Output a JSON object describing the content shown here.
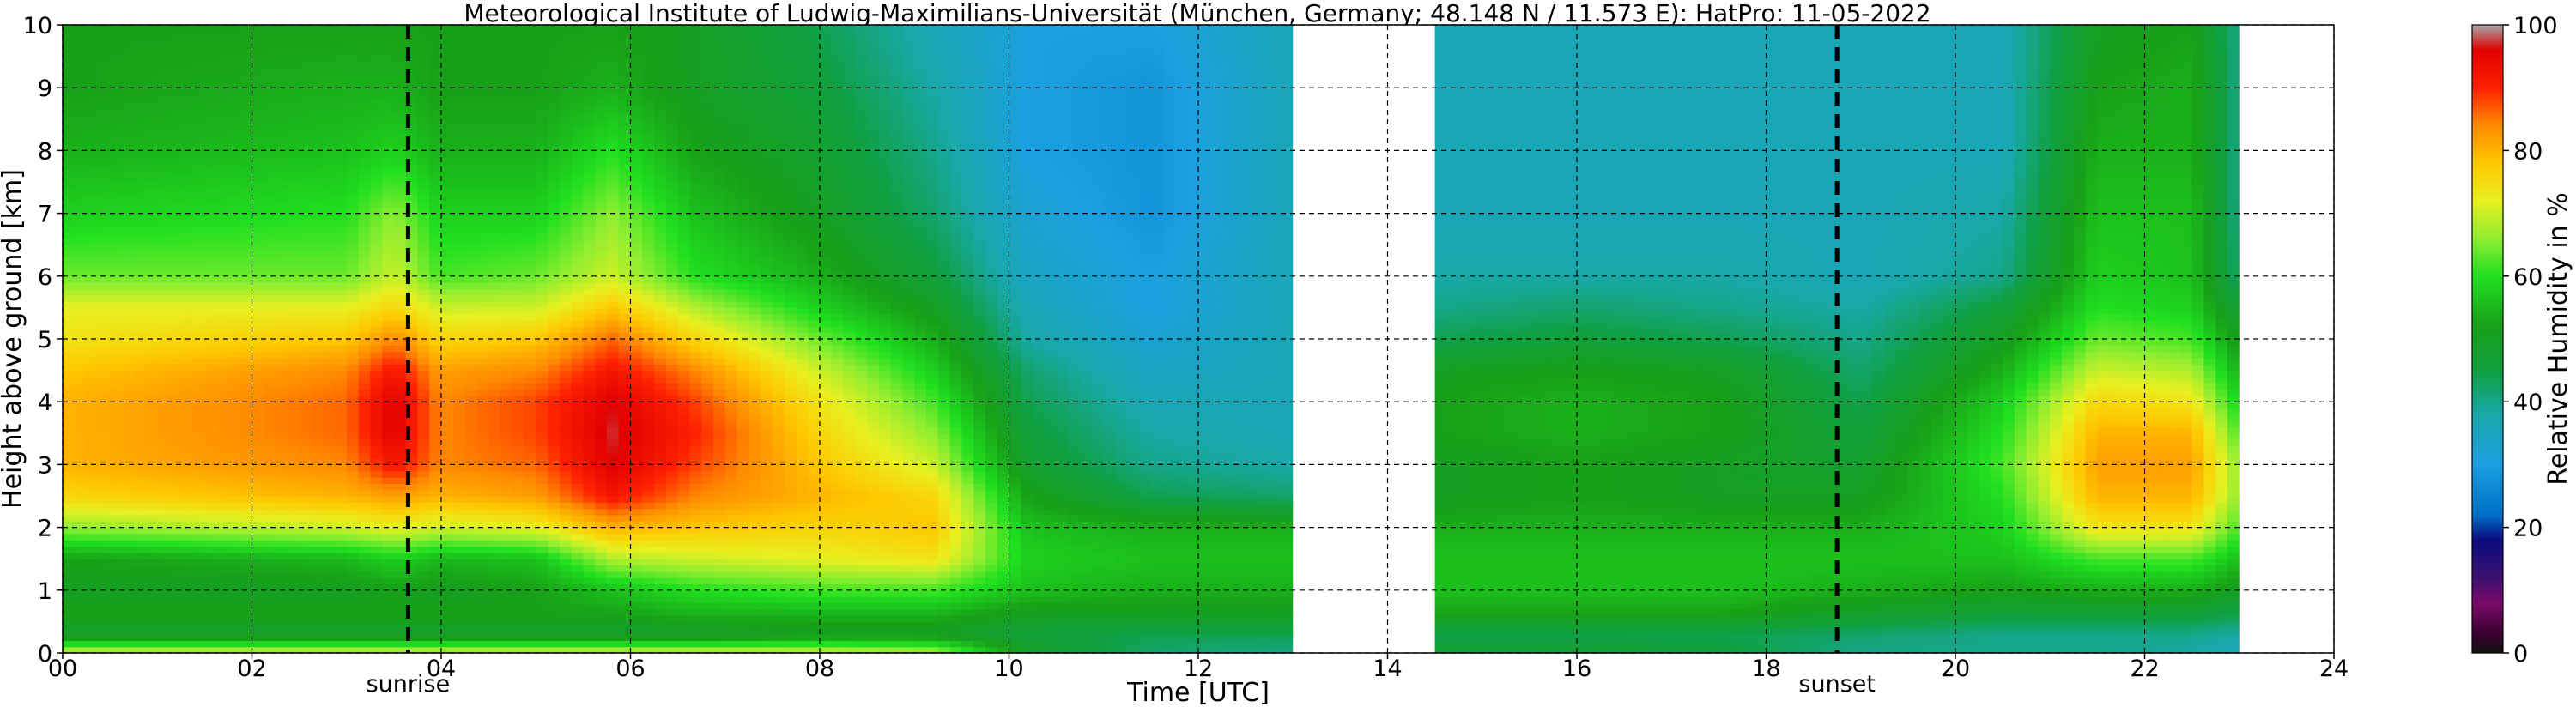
{
  "chart_data": {
    "type": "heatmap",
    "title": "Meteorological Institute of Ludwig-Maximilians-Universität (München, Germany; 48.148 N / 11.573 E):    HatPro: 11-05-2022",
    "xlabel": "Time [UTC]",
    "ylabel": "Height above ground [km]",
    "xlim": [
      0,
      24
    ],
    "ylim": [
      0,
      10
    ],
    "x_ticks": [
      "00",
      "02",
      "04",
      "06",
      "08",
      "10",
      "12",
      "14",
      "16",
      "18",
      "20",
      "22",
      "24"
    ],
    "y_ticks": [
      "0",
      "1",
      "2",
      "3",
      "4",
      "5",
      "6",
      "7",
      "8",
      "9",
      "10"
    ],
    "grid": true,
    "data_gaps_hours": [
      [
        13.0,
        14.45
      ],
      [
        23.0,
        24.0
      ]
    ],
    "events": [
      {
        "label": "sunrise",
        "time_h": 3.65
      },
      {
        "label": "sunset",
        "time_h": 18.75
      }
    ],
    "colorbar": {
      "label": "Relative Humidity in %",
      "range": [
        0,
        100
      ],
      "ticks": [
        "0",
        "20",
        "40",
        "60",
        "80",
        "100"
      ],
      "stops": [
        {
          "v": 0,
          "c": "#111111"
        },
        {
          "v": 3,
          "c": "#3a0030"
        },
        {
          "v": 8,
          "c": "#7a0a6a"
        },
        {
          "v": 12,
          "c": "#3a1070"
        },
        {
          "v": 18,
          "c": "#0a0a80"
        },
        {
          "v": 22,
          "c": "#0070c8"
        },
        {
          "v": 30,
          "c": "#1aa0e0"
        },
        {
          "v": 38,
          "c": "#18a8a8"
        },
        {
          "v": 45,
          "c": "#10a040"
        },
        {
          "v": 52,
          "c": "#18a018"
        },
        {
          "v": 60,
          "c": "#20e020"
        },
        {
          "v": 66,
          "c": "#90ee30"
        },
        {
          "v": 72,
          "c": "#e8f020"
        },
        {
          "v": 78,
          "c": "#ffc800"
        },
        {
          "v": 84,
          "c": "#ff8a00"
        },
        {
          "v": 90,
          "c": "#ff2000"
        },
        {
          "v": 96,
          "c": "#e00000"
        },
        {
          "v": 100,
          "c": "#a8a8a8"
        }
      ]
    },
    "humidity_profiles": [
      {
        "t": 0.0,
        "h": [
          0,
          0.3,
          0.6,
          1,
          1.5,
          2,
          2.5,
          3,
          3.5,
          4,
          4.5,
          5,
          5.5,
          6,
          7,
          8,
          9,
          10
        ],
        "rh": [
          70,
          48,
          52,
          50,
          52,
          66,
          76,
          80,
          80,
          80,
          78,
          74,
          72,
          64,
          58,
          54,
          52,
          52
        ]
      },
      {
        "t": 3.0,
        "h": [
          0,
          0.3,
          0.6,
          1,
          1.5,
          2,
          2.5,
          3,
          3.5,
          4,
          4.5,
          5,
          5.5,
          6,
          7,
          8,
          9,
          10
        ],
        "rh": [
          70,
          48,
          52,
          50,
          55,
          70,
          80,
          84,
          86,
          86,
          84,
          78,
          72,
          64,
          60,
          56,
          54,
          52
        ]
      },
      {
        "t": 3.5,
        "h": [
          0,
          0.3,
          0.6,
          1,
          1.5,
          2,
          2.5,
          3,
          3.5,
          4,
          4.5,
          5,
          5.5,
          6,
          7,
          8,
          9,
          10
        ],
        "rh": [
          70,
          48,
          52,
          52,
          58,
          72,
          82,
          92,
          96,
          96,
          92,
          84,
          76,
          70,
          66,
          58,
          54,
          52
        ]
      },
      {
        "t": 4.0,
        "h": [
          0,
          0.3,
          0.6,
          1,
          1.5,
          2,
          2.5,
          3,
          3.5,
          4,
          4.5,
          5,
          5.5,
          6,
          7,
          8,
          9,
          10
        ],
        "rh": [
          70,
          48,
          52,
          50,
          55,
          70,
          80,
          84,
          84,
          84,
          82,
          76,
          70,
          62,
          58,
          54,
          52,
          52
        ]
      },
      {
        "t": 5.0,
        "h": [
          0,
          0.3,
          0.6,
          1,
          1.5,
          2,
          2.5,
          3,
          3.5,
          4,
          4.5,
          5,
          5.5,
          6,
          7,
          8,
          9,
          10
        ],
        "rh": [
          70,
          48,
          52,
          52,
          56,
          72,
          82,
          86,
          88,
          88,
          84,
          78,
          70,
          64,
          58,
          54,
          52,
          52
        ]
      },
      {
        "t": 5.8,
        "h": [
          0,
          0.3,
          0.6,
          1,
          1.5,
          2,
          2.5,
          3,
          3.5,
          4,
          4.5,
          5,
          5.5,
          6,
          7,
          8,
          9,
          10
        ],
        "rh": [
          70,
          48,
          52,
          56,
          68,
          80,
          92,
          96,
          97,
          96,
          92,
          86,
          78,
          70,
          66,
          60,
          54,
          52
        ]
      },
      {
        "t": 6.7,
        "h": [
          0,
          0.3,
          0.6,
          1,
          1.5,
          2,
          2.5,
          3,
          3.5,
          4,
          4.5,
          5,
          5.5,
          6,
          7,
          8,
          9,
          10
        ],
        "rh": [
          70,
          48,
          54,
          60,
          70,
          78,
          84,
          88,
          90,
          88,
          84,
          76,
          68,
          60,
          56,
          52,
          50,
          50
        ]
      },
      {
        "t": 8.0,
        "h": [
          0,
          0.3,
          0.6,
          1,
          1.5,
          2,
          2.5,
          3,
          3.5,
          4,
          4.5,
          5,
          5.5,
          6,
          7,
          8,
          9,
          10
        ],
        "rh": [
          70,
          50,
          54,
          62,
          72,
          76,
          80,
          78,
          76,
          74,
          70,
          64,
          58,
          54,
          50,
          48,
          46,
          44
        ]
      },
      {
        "t": 9.2,
        "h": [
          0,
          0.3,
          0.6,
          1,
          1.5,
          2,
          2.5,
          3,
          3.5,
          4,
          4.5,
          5,
          5.5,
          6,
          7,
          8,
          9,
          10
        ],
        "rh": [
          68,
          50,
          54,
          62,
          74,
          78,
          76,
          70,
          66,
          62,
          58,
          54,
          50,
          46,
          42,
          40,
          38,
          36
        ]
      },
      {
        "t": 10.2,
        "h": [
          0,
          0.3,
          0.6,
          1,
          1.5,
          2,
          2.5,
          3,
          3.5,
          4,
          4.5,
          5,
          5.5,
          6,
          7,
          8,
          9,
          10
        ],
        "rh": [
          50,
          46,
          50,
          56,
          58,
          56,
          52,
          48,
          46,
          44,
          42,
          38,
          36,
          34,
          32,
          30,
          30,
          30
        ]
      },
      {
        "t": 11.5,
        "h": [
          0,
          0.3,
          0.6,
          1,
          1.5,
          2,
          2.5,
          3,
          3.5,
          4,
          4.5,
          5,
          5.5,
          6,
          7,
          8,
          9,
          10
        ],
        "rh": [
          42,
          44,
          50,
          54,
          56,
          54,
          44,
          40,
          38,
          36,
          34,
          32,
          30,
          30,
          28,
          28,
          28,
          30
        ]
      },
      {
        "t": 13.0,
        "h": [
          0,
          0.3,
          0.6,
          1,
          1.5,
          2,
          2.5,
          3,
          3.5,
          4,
          4.5,
          5,
          5.5,
          6,
          7,
          8,
          9,
          10
        ],
        "rh": [
          40,
          44,
          50,
          54,
          56,
          54,
          42,
          38,
          36,
          36,
          36,
          36,
          36,
          36,
          36,
          36,
          36,
          36
        ]
      },
      {
        "t": 14.45,
        "h": [
          0,
          0.3,
          0.6,
          1,
          1.5,
          2,
          2.5,
          3,
          3.5,
          4,
          4.5,
          5,
          5.5,
          6,
          7,
          8,
          9,
          10
        ],
        "rh": [
          48,
          44,
          52,
          56,
          56,
          54,
          50,
          50,
          52,
          52,
          50,
          44,
          40,
          38,
          36,
          36,
          36,
          36
        ]
      },
      {
        "t": 16.0,
        "h": [
          0,
          0.3,
          0.6,
          1,
          1.5,
          2,
          2.5,
          3,
          3.5,
          4,
          4.5,
          5,
          5.5,
          6,
          7,
          8,
          9,
          10
        ],
        "rh": [
          48,
          44,
          52,
          56,
          56,
          54,
          52,
          52,
          54,
          54,
          52,
          46,
          42,
          38,
          36,
          36,
          36,
          36
        ]
      },
      {
        "t": 17.5,
        "h": [
          0,
          0.3,
          0.6,
          1,
          1.5,
          2,
          2.5,
          3,
          3.5,
          4,
          4.5,
          5,
          5.5,
          6,
          7,
          8,
          9,
          10
        ],
        "rh": [
          46,
          44,
          52,
          56,
          56,
          54,
          50,
          50,
          52,
          52,
          50,
          44,
          40,
          38,
          36,
          36,
          36,
          36
        ]
      },
      {
        "t": 19.0,
        "h": [
          0,
          0.3,
          0.6,
          1,
          1.5,
          2,
          2.5,
          3,
          3.5,
          4,
          4.5,
          5,
          5.5,
          6,
          7,
          8,
          9,
          10
        ],
        "rh": [
          40,
          42,
          48,
          54,
          56,
          54,
          50,
          48,
          46,
          44,
          42,
          40,
          38,
          36,
          36,
          36,
          36,
          36
        ]
      },
      {
        "t": 20.5,
        "h": [
          0,
          0.3,
          0.6,
          1,
          1.5,
          2,
          2.5,
          3,
          3.5,
          4,
          4.5,
          5,
          5.5,
          6,
          7,
          8,
          9,
          10
        ],
        "rh": [
          40,
          40,
          46,
          52,
          56,
          58,
          60,
          62,
          60,
          58,
          54,
          50,
          46,
          40,
          38,
          36,
          36,
          36
        ]
      },
      {
        "t": 21.5,
        "h": [
          0,
          0.3,
          0.6,
          1,
          1.5,
          2,
          2.5,
          3,
          3.5,
          4,
          4.5,
          5,
          5.5,
          6,
          7,
          8,
          9,
          10
        ],
        "rh": [
          40,
          40,
          46,
          54,
          62,
          74,
          80,
          82,
          80,
          76,
          70,
          64,
          60,
          58,
          56,
          54,
          52,
          50
        ]
      },
      {
        "t": 22.5,
        "h": [
          0,
          0.3,
          0.6,
          1,
          1.5,
          2,
          2.5,
          3,
          3.5,
          4,
          4.5,
          5,
          5.5,
          6,
          7,
          8,
          9,
          10
        ],
        "rh": [
          38,
          40,
          46,
          54,
          62,
          74,
          80,
          82,
          80,
          74,
          68,
          62,
          58,
          56,
          56,
          54,
          54,
          52
        ]
      },
      {
        "t": 23.0,
        "h": [
          0,
          0.3,
          0.6,
          1,
          1.5,
          2,
          2.5,
          3,
          3.5,
          4,
          4.5,
          5,
          5.5,
          6,
          7,
          8,
          9,
          10
        ],
        "rh": [
          36,
          38,
          44,
          50,
          56,
          62,
          66,
          66,
          62,
          58,
          54,
          50,
          46,
          42,
          40,
          40,
          40,
          40
        ]
      }
    ]
  }
}
